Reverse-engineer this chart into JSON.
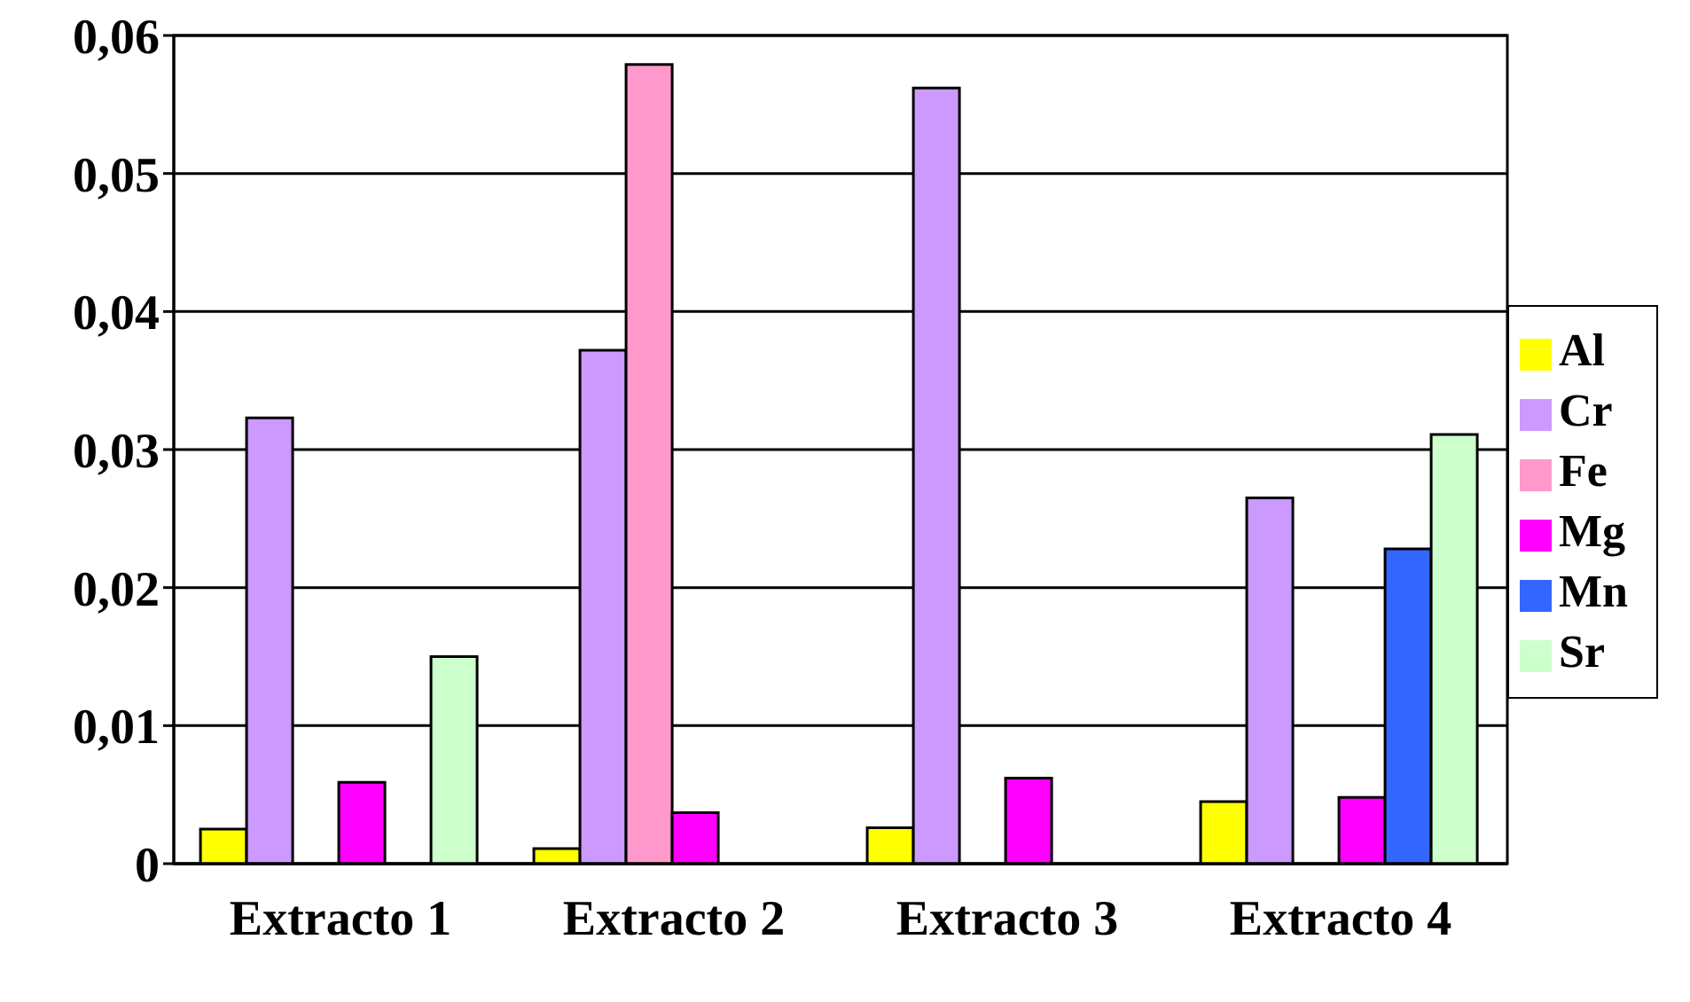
{
  "chart_data": {
    "type": "bar",
    "categories": [
      "Extracto 1",
      "Extracto 2",
      "Extracto 3",
      "Extracto 4"
    ],
    "series": [
      {
        "name": "Al",
        "color": "#ffff00",
        "values": [
          0.0025,
          0.0011,
          0.0026,
          0.0045
        ]
      },
      {
        "name": "Cr",
        "color": "#cc99ff",
        "values": [
          0.0323,
          0.0372,
          0.0562,
          0.0265
        ]
      },
      {
        "name": "Fe",
        "color": "#ff99cc",
        "values": [
          0,
          0.0579,
          0,
          0
        ]
      },
      {
        "name": "Mg",
        "color": "#ff00ff",
        "values": [
          0.0059,
          0.0037,
          0.0062,
          0.0048
        ]
      },
      {
        "name": "Mn",
        "color": "#3366ff",
        "values": [
          0,
          0,
          0,
          0.0228
        ]
      },
      {
        "name": "Sr",
        "color": "#ccffcc",
        "values": [
          0.015,
          0,
          0,
          0.0311
        ]
      }
    ],
    "ylim": [
      0,
      0.06
    ],
    "yticks": [
      {
        "value": 0,
        "label": "0"
      },
      {
        "value": 0.01,
        "label": "0,01"
      },
      {
        "value": 0.02,
        "label": "0,02"
      },
      {
        "value": 0.03,
        "label": "0,03"
      },
      {
        "value": 0.04,
        "label": "0,04"
      },
      {
        "value": 0.05,
        "label": "0,05"
      },
      {
        "value": 0.06,
        "label": "0,06"
      }
    ],
    "grid": "y",
    "legend": "right"
  }
}
